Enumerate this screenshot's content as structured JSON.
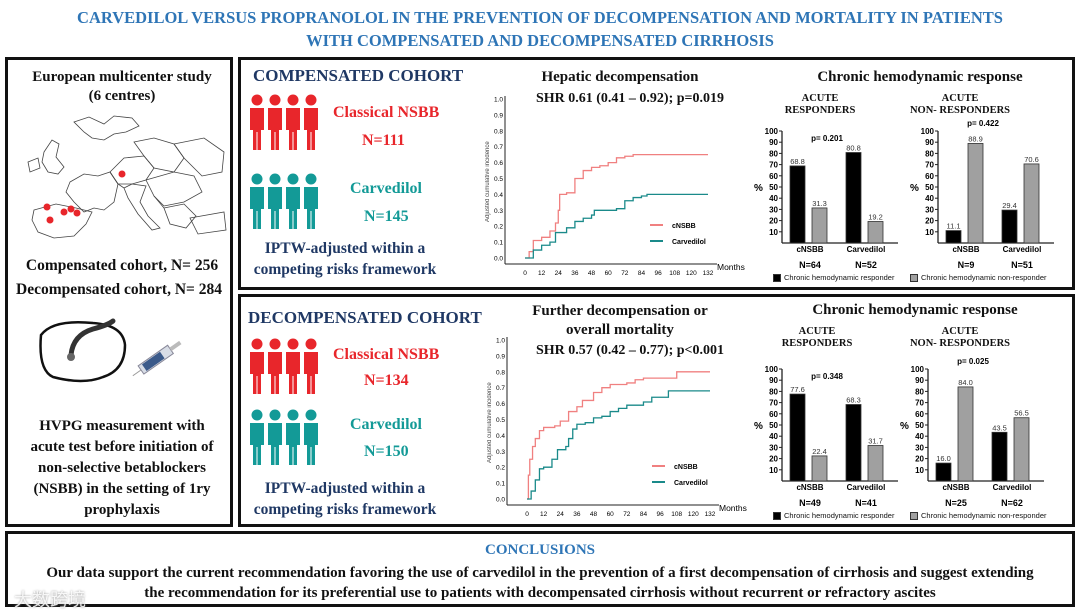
{
  "header": {
    "title_line1": "CARVEDILOL VERSUS PROPRANOLOL IN THE PREVENTION OF DECOMPENSATION AND MORTALITY IN PATIENTS",
    "title_line2": "WITH COMPENSATED AND DECOMPENSATED CIRRHOSIS"
  },
  "study": {
    "title_line1": "European multicenter study",
    "title_line2": "(6 centres)",
    "compensated": "Compensated cohort, N= 256",
    "decompensated": "Decompensated cohort, N= 284",
    "method_lines": [
      "HVPG measurement with",
      "acute test before initiation of",
      "non-selective betablockers",
      "(NSBB) in the setting of 1ry",
      "prophylaxis"
    ]
  },
  "compensated": {
    "title": "COMPENSATED COHORT",
    "group1": "Classical NSBB",
    "n1": "N=111",
    "group2": "Carvedilol",
    "n2": "N=145",
    "iptw_line1": "IPTW-adjusted within a",
    "iptw_line2": "competing risks framework",
    "km_title": "Hepatic decompensation",
    "km_shr": "SHR 0.61 (0.41 – 0.92); p=0.019",
    "bar_title": "Chronic hemodynamic response",
    "resp_h1": "ACUTE",
    "resp_h2": "RESPONDERS",
    "nonresp_h1": "ACUTE",
    "nonresp_h2": "NON- RESPONDERS"
  },
  "decompensated": {
    "title": "DECOMPENSATED COHORT",
    "group1": "Classical NSBB",
    "n1": "N=134",
    "group2": "Carvedilol",
    "n2": "N=150",
    "iptw_line1": "IPTW-adjusted within a",
    "iptw_line2": "competing risks framework",
    "km_title1": "Further decompensation or",
    "km_title2": "overall mortality",
    "km_shr": "SHR 0.57 (0.42 – 0.77); p<0.001",
    "bar_title": "Chronic hemodynamic response",
    "resp_h1": "ACUTE",
    "resp_h2": "RESPONDERS",
    "nonresp_h1": "ACUTE",
    "nonresp_h2": "NON- RESPONDERS"
  },
  "legend": {
    "responder": "Chronic hemodynamic responder",
    "nonresponder": "Chronic hemodynamic non-responder"
  },
  "conclusions": {
    "title": "CONCLUSIONS",
    "line1": "Our data support the current recommendation favoring the use of carvedilol in the prevention of a first decompensation of cirrhosis and suggest extending",
    "line2": "the recommendation for its preferential use to patients with decompensated cirrhosis without recurrent or refractory ascites"
  },
  "watermark": "大数跨境",
  "colors": {
    "title": "#2e75b6",
    "navy": "#1f3864",
    "red": "#e8262b",
    "teal": "#139a97",
    "km_red": "#f08080",
    "km_teal": "#1a8a8a",
    "bar_black": "#000000",
    "bar_grey": "#a0a0a0"
  },
  "chart_data": [
    {
      "id": "km_comp",
      "type": "line",
      "title": "Hepatic decompensation",
      "ylabel": "Adjusted cumulative incidence",
      "xlabel": "Months",
      "xlim": [
        0,
        132
      ],
      "ylim": [
        0,
        1
      ],
      "xticks": [
        0,
        12,
        24,
        36,
        48,
        60,
        72,
        84,
        96,
        108,
        120,
        132
      ],
      "yticks": [
        0.0,
        0.1,
        0.2,
        0.3,
        0.4,
        0.5,
        0.6,
        0.7,
        0.8,
        0.9,
        1.0
      ],
      "legend": "bottom-right",
      "series": [
        {
          "name": "cNSBB",
          "points": [
            [
              0,
              0
            ],
            [
              3,
              0.04
            ],
            [
              6,
              0.11
            ],
            [
              12,
              0.13
            ],
            [
              18,
              0.17
            ],
            [
              22,
              0.22
            ],
            [
              24,
              0.3
            ],
            [
              25,
              0.4
            ],
            [
              30,
              0.41
            ],
            [
              36,
              0.5
            ],
            [
              42,
              0.55
            ],
            [
              48,
              0.57
            ],
            [
              54,
              0.58
            ],
            [
              60,
              0.6
            ],
            [
              66,
              0.63
            ],
            [
              72,
              0.64
            ],
            [
              78,
              0.65
            ],
            [
              132,
              0.65
            ]
          ]
        },
        {
          "name": "Carvedilol",
          "points": [
            [
              0,
              0
            ],
            [
              6,
              0.05
            ],
            [
              12,
              0.08
            ],
            [
              18,
              0.1
            ],
            [
              22,
              0.16
            ],
            [
              30,
              0.19
            ],
            [
              36,
              0.23
            ],
            [
              42,
              0.25
            ],
            [
              48,
              0.27
            ],
            [
              50,
              0.3
            ],
            [
              66,
              0.31
            ],
            [
              72,
              0.36
            ],
            [
              78,
              0.38
            ],
            [
              84,
              0.39
            ],
            [
              88,
              0.4
            ],
            [
              132,
              0.4
            ]
          ]
        }
      ]
    },
    {
      "id": "bar_comp_resp",
      "type": "bar",
      "p": "p= 0.201",
      "categories": [
        "cNSBB",
        "Carvedilol"
      ],
      "n": [
        "N=64",
        "N=52"
      ],
      "ylabel": "%",
      "ylim": [
        0,
        100
      ],
      "yticks": [
        10,
        20,
        30,
        40,
        50,
        60,
        70,
        80,
        90,
        100
      ],
      "series": [
        {
          "name": "Chronic hemodynamic responder",
          "values": [
            68.8,
            80.8
          ]
        },
        {
          "name": "Chronic hemodynamic non-responder",
          "values": [
            31.3,
            19.2
          ]
        }
      ]
    },
    {
      "id": "bar_comp_nonresp",
      "type": "bar",
      "p": "p= 0.422",
      "categories": [
        "cNSBB",
        "Carvedilol"
      ],
      "n": [
        "N=9",
        "N=51"
      ],
      "ylabel": "%",
      "ylim": [
        0,
        100
      ],
      "yticks": [
        10,
        20,
        30,
        40,
        50,
        60,
        70,
        80,
        90,
        100
      ],
      "series": [
        {
          "name": "Chronic hemodynamic responder",
          "values": [
            11.1,
            29.4
          ]
        },
        {
          "name": "Chronic hemodynamic non-responder",
          "values": [
            88.9,
            70.6
          ]
        }
      ]
    },
    {
      "id": "km_decomp",
      "type": "line",
      "title": "Further decompensation or overall mortality",
      "ylabel": "Adjusted cumulative incidence",
      "xlabel": "Months",
      "xlim": [
        0,
        132
      ],
      "ylim": [
        0,
        1
      ],
      "xticks": [
        0,
        12,
        24,
        36,
        48,
        60,
        72,
        84,
        96,
        108,
        120,
        132
      ],
      "yticks": [
        0.0,
        0.1,
        0.2,
        0.3,
        0.4,
        0.5,
        0.6,
        0.7,
        0.8,
        0.9,
        1.0
      ],
      "legend": "bottom-right",
      "series": [
        {
          "name": "cNSBB",
          "points": [
            [
              0,
              0
            ],
            [
              1,
              0.15
            ],
            [
              2,
              0.25
            ],
            [
              4,
              0.33
            ],
            [
              6,
              0.38
            ],
            [
              9,
              0.43
            ],
            [
              12,
              0.45
            ],
            [
              20,
              0.46
            ],
            [
              24,
              0.49
            ],
            [
              30,
              0.55
            ],
            [
              36,
              0.58
            ],
            [
              40,
              0.62
            ],
            [
              48,
              0.67
            ],
            [
              54,
              0.7
            ],
            [
              60,
              0.72
            ],
            [
              72,
              0.73
            ],
            [
              78,
              0.75
            ],
            [
              84,
              0.76
            ],
            [
              108,
              0.8
            ],
            [
              132,
              0.8
            ]
          ]
        },
        {
          "name": "Carvedilol",
          "points": [
            [
              0,
              0
            ],
            [
              3,
              0.05
            ],
            [
              6,
              0.12
            ],
            [
              9,
              0.19
            ],
            [
              12,
              0.2
            ],
            [
              18,
              0.25
            ],
            [
              22,
              0.31
            ],
            [
              28,
              0.33
            ],
            [
              30,
              0.38
            ],
            [
              33,
              0.44
            ],
            [
              36,
              0.47
            ],
            [
              42,
              0.48
            ],
            [
              48,
              0.51
            ],
            [
              54,
              0.52
            ],
            [
              60,
              0.55
            ],
            [
              66,
              0.57
            ],
            [
              72,
              0.59
            ],
            [
              84,
              0.61
            ],
            [
              90,
              0.64
            ],
            [
              102,
              0.68
            ],
            [
              132,
              0.68
            ]
          ]
        }
      ]
    },
    {
      "id": "bar_decomp_resp",
      "type": "bar",
      "p": "p= 0.348",
      "categories": [
        "cNSBB",
        "Carvedilol"
      ],
      "n": [
        "N=49",
        "N=41"
      ],
      "ylabel": "%",
      "ylim": [
        0,
        100
      ],
      "yticks": [
        10,
        20,
        30,
        40,
        50,
        60,
        70,
        80,
        90,
        100
      ],
      "series": [
        {
          "name": "Chronic hemodynamic responder",
          "values": [
            77.6,
            68.3
          ]
        },
        {
          "name": "Chronic hemodynamic non-responder",
          "values": [
            22.4,
            31.7
          ]
        }
      ]
    },
    {
      "id": "bar_decomp_nonresp",
      "type": "bar",
      "p": "p= 0.025",
      "categories": [
        "cNSBB",
        "Carvedilol"
      ],
      "n": [
        "N=25",
        "N=62"
      ],
      "ylabel": "%",
      "ylim": [
        0,
        100
      ],
      "yticks": [
        10,
        20,
        30,
        40,
        50,
        60,
        70,
        80,
        90,
        100
      ],
      "series": [
        {
          "name": "Chronic hemodynamic responder",
          "values": [
            16.0,
            43.5
          ]
        },
        {
          "name": "Chronic hemodynamic non-responder",
          "values": [
            84.0,
            56.5
          ]
        }
      ]
    }
  ]
}
